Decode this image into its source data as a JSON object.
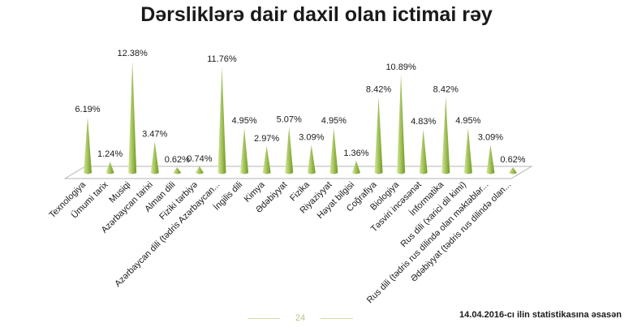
{
  "title": "Dərsliklərə dair daxil olan ictimai rəy",
  "footer": {
    "page_number": "24",
    "source_note": "14.04.2016-cı ilin statistikasına əsasən"
  },
  "colors": {
    "cone_light": "#d6e89a",
    "cone_dark": "#6f9a1e",
    "floor": "#ffffff",
    "floor_edge": "#b5b5b5"
  },
  "chart_data": {
    "type": "bar",
    "style": "3d-cone",
    "title": "Dərsliklərə dair daxil olan ictimai rəy",
    "xlabel": "",
    "ylabel": "",
    "value_suffix": "%",
    "ylim": [
      0,
      13
    ],
    "grid": false,
    "legend": false,
    "categories": [
      "Texnologiya",
      "Ümumi tarix",
      "Musiqi",
      "Azərbaycan tarixi",
      "Alman dili",
      "Fiziki tərbiyə",
      "Azərbaycan dili (tədris Azərbaycan...",
      "İngilis dili",
      "Kimya",
      "Ədəbiyyat",
      "Fizika",
      "Riyaziyyat",
      "Həyat bilgisi",
      "Coğrafiya",
      "Biologiya",
      "Təsviri incəsənət",
      "İnformatika",
      "Rus dili (xarici dil kimi)",
      "Rus dili (tədris rus dilində olan məktəblər...",
      "Ədəbiyyat (tədris rus dilində olan..."
    ],
    "values": [
      6.19,
      1.24,
      12.38,
      3.47,
      0.62,
      0.74,
      11.76,
      4.95,
      2.97,
      5.07,
      3.09,
      4.95,
      1.36,
      8.42,
      10.89,
      4.83,
      8.42,
      4.95,
      3.09,
      0.62
    ]
  }
}
